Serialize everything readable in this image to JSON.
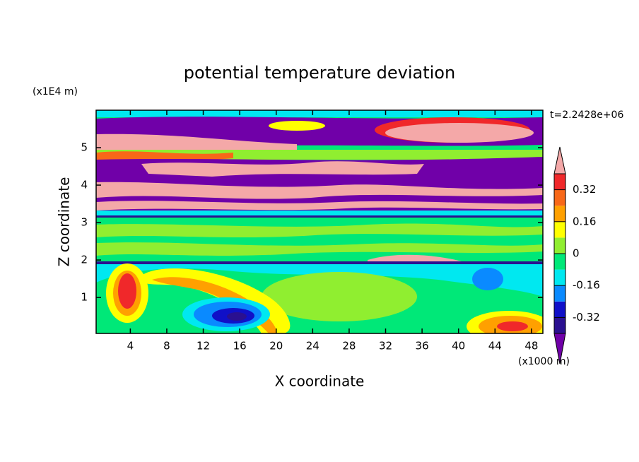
{
  "chart_data": {
    "type": "contour",
    "title": "potential temperature deviation",
    "xlabel": "X coordinate",
    "ylabel": "Z coordinate",
    "x_unit": "(x1000 m)",
    "y_unit": "(x1E4 m)",
    "annotation": "t=2.2428e+06",
    "xlim": [
      0.25,
      49.25
    ],
    "ylim": [
      0.04,
      6.0
    ],
    "xticks": [
      4,
      8,
      12,
      16,
      20,
      24,
      28,
      32,
      36,
      40,
      44,
      48
    ],
    "yticks": [
      1,
      2,
      3,
      4,
      5
    ],
    "levels": [
      -0.4,
      -0.32,
      -0.24,
      -0.16,
      -0.08,
      0,
      0.08,
      0.16,
      0.24,
      0.32,
      0.4
    ],
    "colorbar_ticks": [
      -0.32,
      -0.16,
      0,
      0.16,
      0.32
    ],
    "colors": [
      "#7000a8",
      "#2a1090",
      "#1010c8",
      "#0a8aff",
      "#00e8f0",
      "#00e878",
      "#90ee30",
      "#ffff00",
      "#ffa000",
      "#f86818",
      "#f0282a",
      "#f4a8a8"
    ]
  }
}
